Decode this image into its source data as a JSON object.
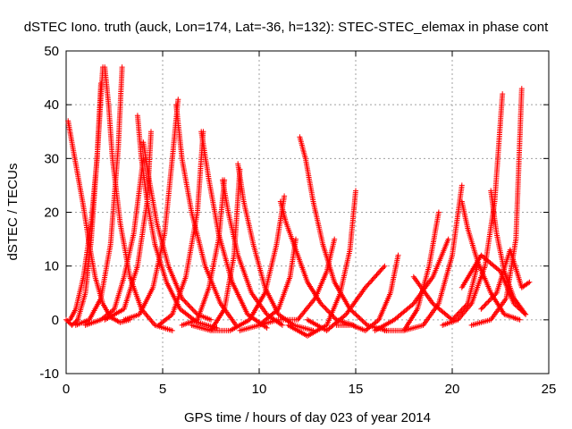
{
  "chart_data": {
    "type": "scatter",
    "title": "dSTEC Iono. truth (auck, Lon=174, Lat=-36, h=132): STEC-STEC_elemax in phase cont",
    "xlabel": "GPS time / hours of day 023 of year 2014",
    "ylabel": "dSTEC  / TECUs",
    "xlim": [
      0,
      25
    ],
    "ylim": [
      -10,
      50
    ],
    "xticks": [
      "0",
      "5",
      "10",
      "15",
      "20",
      "25"
    ],
    "yticks": [
      "-10",
      "0",
      "10",
      "20",
      "30",
      "40",
      "50"
    ],
    "grid": true,
    "marker": "plus",
    "color": "#ff0000",
    "passes": [
      {
        "x": [
          0.1,
          0.3,
          0.6,
          0.9,
          1.2,
          1.5,
          1.9,
          2.3,
          2.8,
          3.3
        ],
        "y": [
          37,
          33,
          27,
          21,
          14,
          8,
          3,
          0.5,
          -0.5,
          0
        ]
      },
      {
        "x": [
          0.0,
          0.3,
          0.6,
          1.0,
          1.3,
          1.6,
          1.8
        ],
        "y": [
          0,
          -1,
          0,
          5,
          15,
          30,
          44
        ]
      },
      {
        "x": [
          0.2,
          0.5,
          0.9,
          1.3,
          1.6,
          1.9
        ],
        "y": [
          0,
          2,
          8,
          18,
          30,
          47
        ]
      },
      {
        "x": [
          2.0,
          2.2,
          2.4,
          2.8,
          3.3,
          3.9,
          4.6,
          5.5
        ],
        "y": [
          47,
          40,
          30,
          18,
          8,
          2,
          -1,
          -2
        ]
      },
      {
        "x": [
          0.5,
          1.2,
          1.8,
          2.3,
          2.7,
          2.9
        ],
        "y": [
          -1,
          0,
          4,
          14,
          32,
          47
        ]
      },
      {
        "x": [
          1.0,
          1.8,
          2.5,
          3.0,
          3.5,
          4.0
        ],
        "y": [
          -1,
          0,
          2,
          8,
          16,
          30
        ]
      },
      {
        "x": [
          3.7,
          3.9,
          4.2,
          4.6,
          5.2,
          5.9,
          6.8,
          7.8
        ],
        "y": [
          38,
          30,
          22,
          14,
          7,
          2,
          -0.5,
          -1.5
        ]
      },
      {
        "x": [
          2.0,
          3.0,
          3.7,
          4.2,
          4.4
        ],
        "y": [
          0,
          2,
          10,
          22,
          35
        ]
      },
      {
        "x": [
          4.0,
          4.3,
          4.7,
          5.3,
          6.0,
          6.8,
          7.5
        ],
        "y": [
          33,
          26,
          18,
          10,
          4,
          1,
          0
        ]
      },
      {
        "x": [
          3.0,
          3.8,
          4.5,
          5.1,
          5.5,
          5.8
        ],
        "y": [
          0,
          1,
          6,
          16,
          30,
          41
        ]
      },
      {
        "x": [
          5.7,
          6.0,
          6.5,
          7.2,
          8.0,
          8.8
        ],
        "y": [
          40,
          30,
          20,
          10,
          3,
          -1
        ]
      },
      {
        "x": [
          4.8,
          5.5,
          6.2,
          6.8,
          7.1
        ],
        "y": [
          -1,
          1,
          8,
          20,
          35
        ]
      },
      {
        "x": [
          7.0,
          7.4,
          7.9,
          8.6,
          9.4,
          10.4
        ],
        "y": [
          35,
          26,
          16,
          7,
          1,
          -1.5
        ]
      },
      {
        "x": [
          6.0,
          6.8,
          7.4,
          7.9,
          8.2
        ],
        "y": [
          -1,
          0,
          6,
          15,
          26
        ]
      },
      {
        "x": [
          8.1,
          8.4,
          8.9,
          9.6,
          10.4,
          11.2
        ],
        "y": [
          26,
          20,
          12,
          5,
          1,
          -1
        ]
      },
      {
        "x": [
          6.5,
          7.5,
          8.2,
          8.7,
          9.0
        ],
        "y": [
          -1,
          -2,
          2,
          12,
          28
        ]
      },
      {
        "x": [
          8.9,
          9.2,
          9.7,
          10.3,
          11.0,
          11.8,
          12.8
        ],
        "y": [
          29,
          22,
          14,
          6,
          1,
          -1,
          -2
        ]
      },
      {
        "x": [
          7.5,
          8.5,
          9.5,
          10.3,
          10.9,
          11.3
        ],
        "y": [
          -2,
          -2,
          0,
          5,
          14,
          23
        ]
      },
      {
        "x": [
          11.1,
          11.4,
          11.9,
          12.5,
          13.2,
          14.0,
          14.9
        ],
        "y": [
          22,
          18,
          13,
          7,
          3,
          0,
          -1
        ]
      },
      {
        "x": [
          9.0,
          10.0,
          11.0,
          11.6,
          11.9
        ],
        "y": [
          -2,
          -1,
          2,
          8,
          15
        ]
      },
      {
        "x": [
          12.1,
          12.4,
          12.8,
          13.3,
          13.9,
          14.7,
          15.6,
          16.6
        ],
        "y": [
          34,
          30,
          22,
          14,
          7,
          2,
          -1,
          -2
        ]
      },
      {
        "x": [
          10.0,
          11.0,
          12.0,
          12.9,
          13.5,
          13.9
        ],
        "y": [
          -1,
          0,
          0,
          4,
          9,
          15
        ]
      },
      {
        "x": [
          11.5,
          12.5,
          13.5,
          14.2,
          14.7,
          15.0
        ],
        "y": [
          -1,
          -3,
          -1,
          5,
          13,
          24
        ]
      },
      {
        "x": [
          12.5,
          13.5,
          14.5,
          15.5,
          16.5
        ],
        "y": [
          0,
          -2,
          1,
          6,
          10
        ]
      },
      {
        "x": [
          14.0,
          14.8,
          15.5,
          16.2,
          16.8,
          17.2
        ],
        "y": [
          -1,
          -1,
          -2,
          0,
          5,
          12
        ]
      },
      {
        "x": [
          16.5,
          17.5,
          18.2,
          18.8,
          19.3
        ],
        "y": [
          -2,
          -2,
          2,
          10,
          20
        ]
      },
      {
        "x": [
          17.5,
          18.5,
          19.3,
          20.0,
          20.5
        ],
        "y": [
          -2,
          -1,
          3,
          12,
          25
        ]
      },
      {
        "x": [
          20.5,
          20.8,
          21.3,
          22.0,
          22.7,
          23.5
        ],
        "y": [
          22,
          17,
          11,
          5,
          1,
          0
        ]
      },
      {
        "x": [
          16.0,
          17.0,
          18.0,
          19.0,
          19.8
        ],
        "y": [
          -2,
          0,
          3,
          8,
          15
        ]
      },
      {
        "x": [
          18.0,
          19.0,
          20.0,
          20.8,
          21.3
        ],
        "y": [
          8,
          3,
          0,
          3,
          10
        ]
      },
      {
        "x": [
          19.5,
          20.3,
          21.0,
          21.7,
          22.2,
          22.6
        ],
        "y": [
          -1,
          0,
          3,
          10,
          22,
          42
        ]
      },
      {
        "x": [
          22.0,
          22.3,
          22.7,
          23.2,
          23.8
        ],
        "y": [
          24,
          16,
          9,
          4,
          1
        ]
      },
      {
        "x": [
          21.0,
          22.0,
          22.8,
          23.3,
          23.6
        ],
        "y": [
          -1,
          0,
          4,
          15,
          43
        ]
      },
      {
        "x": [
          21.5,
          22.3,
          23.0,
          23.6,
          24.0
        ],
        "y": [
          2,
          5,
          13,
          6,
          7
        ]
      },
      {
        "x": [
          20.5,
          21.5,
          22.5,
          23.2,
          23.8
        ],
        "y": [
          6,
          12,
          9,
          3,
          1
        ]
      }
    ]
  }
}
